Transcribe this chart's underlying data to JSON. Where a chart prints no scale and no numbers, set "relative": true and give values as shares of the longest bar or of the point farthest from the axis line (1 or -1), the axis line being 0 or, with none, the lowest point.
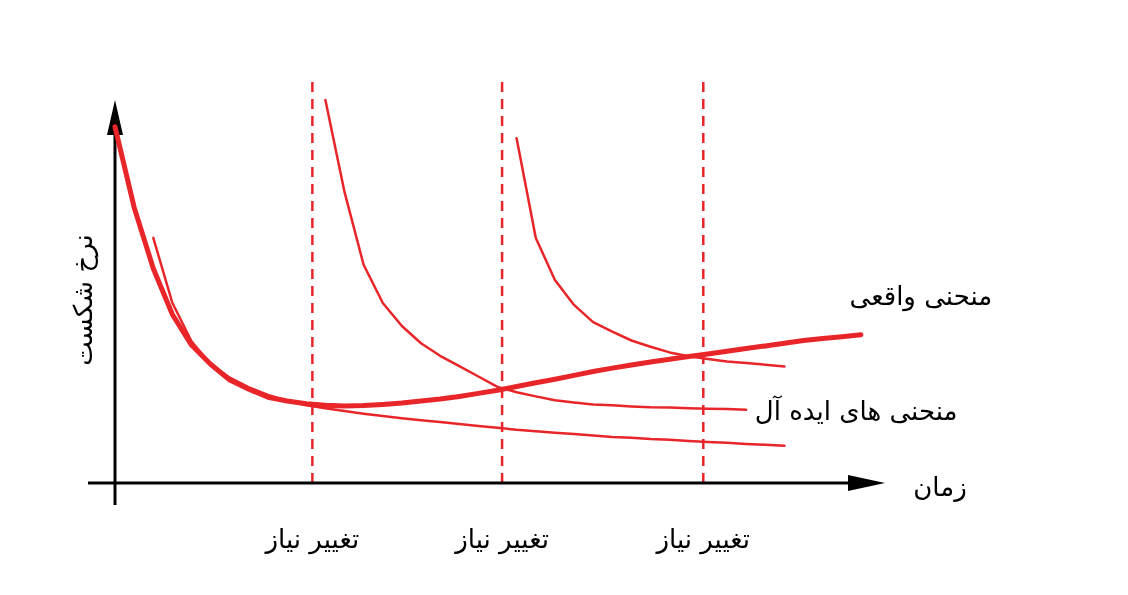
{
  "chart_data": {
    "type": "line",
    "relative": true,
    "xlabel": "زمان",
    "ylabel": "نرخ شکست",
    "line_style": "solid",
    "categories": [
      null,
      null,
      null,
      null,
      null,
      null,
      null,
      null,
      null,
      null,
      null,
      null,
      null,
      null,
      null,
      null,
      null,
      null,
      null,
      null,
      null,
      null,
      null,
      null,
      null,
      null,
      null,
      null,
      null,
      null,
      null,
      null,
      null,
      null,
      null,
      null,
      null,
      null,
      null,
      null
    ],
    "series": [
      {
        "name": "منحنی واقعی",
        "color": "#e8262a",
        "values": [
          0.93,
          0.72,
          0.56,
          0.44,
          0.36,
          0.31,
          0.269,
          0.245,
          0.224,
          0.214,
          0.207,
          0.203,
          0.201,
          0.202,
          0.205,
          0.209,
          0.214,
          0.219,
          0.226,
          0.234,
          0.242,
          0.252,
          0.262,
          0.271,
          0.281,
          0.291,
          0.3,
          0.308,
          0.316,
          0.323,
          0.33,
          0.337,
          0.344,
          0.351,
          0.358,
          0.365,
          0.372,
          0.377,
          0.382,
          0.387
        ]
      },
      {
        "color": "#e8262a",
        "values": [
          null,
          null,
          0.64,
          0.47,
          0.37,
          0.31,
          0.275,
          0.25,
          0.23,
          0.215,
          0.203,
          0.195,
          0.188,
          0.181,
          0.175,
          0.169,
          0.164,
          0.159,
          0.154,
          0.149,
          0.144,
          0.139,
          0.135,
          0.131,
          0.128,
          0.124,
          0.12,
          0.118,
          0.115,
          0.113,
          0.11,
          0.107,
          0.105,
          0.102,
          0.1,
          0.097,
          null,
          null,
          null,
          null
        ]
      },
      {
        "name": "منحنی های ایده آل",
        "color": "#e8262a",
        "values": [
          null,
          null,
          null,
          null,
          null,
          null,
          null,
          null,
          null,
          null,
          null,
          1.0,
          0.76,
          0.57,
          0.47,
          0.41,
          0.365,
          0.332,
          0.305,
          0.278,
          0.251,
          0.237,
          0.226,
          0.216,
          0.21,
          0.205,
          0.203,
          0.2,
          0.198,
          0.197,
          0.195,
          0.194,
          0.193,
          0.191,
          null,
          null,
          null,
          null,
          null,
          null
        ]
      },
      {
        "color": "#e8262a",
        "values": [
          null,
          null,
          null,
          null,
          null,
          null,
          null,
          null,
          null,
          null,
          null,
          null,
          null,
          null,
          null,
          null,
          null,
          null,
          null,
          null,
          null,
          0.9,
          0.64,
          0.53,
          0.465,
          0.42,
          0.395,
          0.372,
          0.356,
          0.341,
          0.331,
          0.324,
          0.317,
          0.313,
          0.309,
          0.304,
          null,
          null,
          null,
          null
        ]
      }
    ],
    "annotations": [
      "تغییر نیاز",
      "تغییر نیاز",
      "تغییر نیاز"
    ]
  }
}
